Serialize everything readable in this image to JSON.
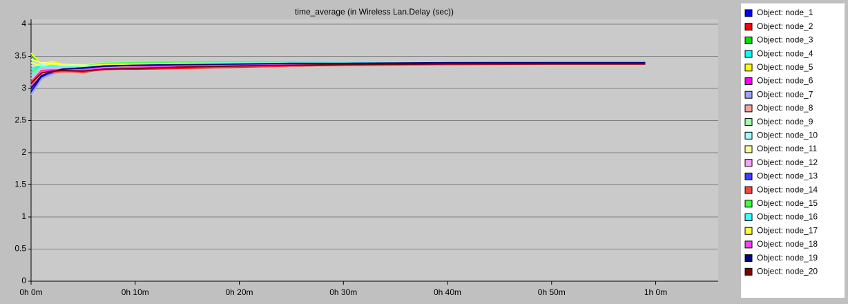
{
  "chart_data": {
    "type": "line",
    "title": "time_average (in Wireless Lan.Delay (sec))",
    "x": [
      0,
      1,
      2,
      3,
      5,
      7,
      10,
      14,
      20,
      25,
      30,
      40,
      50,
      59
    ],
    "xlim": [
      0,
      66
    ],
    "xticks": [
      {
        "value": 0,
        "label": "0h 0m"
      },
      {
        "value": 10,
        "label": "0h 10m"
      },
      {
        "value": 20,
        "label": "0h 20m"
      },
      {
        "value": 30,
        "label": "0h 30m"
      },
      {
        "value": 40,
        "label": "0h 40m"
      },
      {
        "value": 50,
        "label": "0h 50m"
      },
      {
        "value": 60,
        "label": "1h 0m"
      }
    ],
    "ylim": [
      0,
      4
    ],
    "yticks": [
      0,
      0.5,
      1,
      1.5,
      2,
      2.5,
      3,
      3.5,
      4
    ],
    "grid": true,
    "legend": "right",
    "series": [
      {
        "name": "Object: node_1",
        "color": "#0000ff",
        "values": [
          2.95,
          3.18,
          3.25,
          3.3,
          3.32,
          3.35,
          3.36,
          3.37,
          3.38,
          3.39,
          3.39,
          3.4,
          3.4,
          3.4
        ]
      },
      {
        "name": "Object: node_2",
        "color": "#ff0000",
        "values": [
          3.0,
          3.25,
          3.28,
          3.27,
          3.25,
          3.3,
          3.3,
          3.31,
          3.33,
          3.35,
          3.36,
          3.38,
          3.38,
          3.38
        ]
      },
      {
        "name": "Object: node_3",
        "color": "#00e000",
        "values": [
          3.5,
          3.4,
          3.38,
          3.37,
          3.36,
          3.4,
          3.4,
          3.4,
          3.41,
          3.4,
          3.4,
          3.4,
          3.39,
          3.39
        ]
      },
      {
        "name": "Object: node_4",
        "color": "#00ffff",
        "values": [
          3.3,
          3.36,
          3.35,
          3.36,
          3.35,
          3.37,
          3.38,
          3.39,
          3.4,
          3.4,
          3.4,
          3.4,
          3.4,
          3.4
        ]
      },
      {
        "name": "Object: node_5",
        "color": "#ffff00",
        "values": [
          3.55,
          3.38,
          3.42,
          3.38,
          3.36,
          3.38,
          3.38,
          3.39,
          3.4,
          3.39,
          3.39,
          3.4,
          3.4,
          3.39
        ]
      },
      {
        "name": "Object: node_6",
        "color": "#ff00ff",
        "values": [
          3.1,
          3.28,
          3.3,
          3.3,
          3.3,
          3.32,
          3.34,
          3.35,
          3.36,
          3.37,
          3.37,
          3.38,
          3.39,
          3.39
        ]
      },
      {
        "name": "Object: node_7",
        "color": "#a0a0ff",
        "values": [
          2.9,
          3.15,
          3.22,
          3.28,
          3.3,
          3.33,
          3.35,
          3.37,
          3.38,
          3.38,
          3.39,
          3.39,
          3.4,
          3.4
        ]
      },
      {
        "name": "Object: node_8",
        "color": "#ffa0a0",
        "values": [
          3.05,
          3.22,
          3.26,
          3.28,
          3.27,
          3.31,
          3.32,
          3.33,
          3.35,
          3.36,
          3.37,
          3.38,
          3.38,
          3.38
        ]
      },
      {
        "name": "Object: node_9",
        "color": "#a0ffa0",
        "values": [
          3.4,
          3.38,
          3.36,
          3.38,
          3.37,
          3.4,
          3.41,
          3.41,
          3.41,
          3.4,
          3.4,
          3.4,
          3.4,
          3.39
        ]
      },
      {
        "name": "Object: node_10",
        "color": "#a0ffff",
        "values": [
          3.35,
          3.37,
          3.36,
          3.35,
          3.36,
          3.38,
          3.39,
          3.4,
          3.4,
          3.4,
          3.4,
          3.41,
          3.4,
          3.4
        ]
      },
      {
        "name": "Object: node_11",
        "color": "#ffffa0",
        "values": [
          3.45,
          3.4,
          3.39,
          3.37,
          3.36,
          3.38,
          3.39,
          3.39,
          3.4,
          3.39,
          3.39,
          3.4,
          3.39,
          3.39
        ]
      },
      {
        "name": "Object: node_12",
        "color": "#ffa0ff",
        "values": [
          3.15,
          3.3,
          3.31,
          3.31,
          3.3,
          3.33,
          3.34,
          3.35,
          3.36,
          3.37,
          3.38,
          3.38,
          3.39,
          3.39
        ]
      },
      {
        "name": "Object: node_13",
        "color": "#4040ff",
        "values": [
          3.0,
          3.2,
          3.24,
          3.29,
          3.31,
          3.34,
          3.36,
          3.37,
          3.38,
          3.38,
          3.39,
          3.39,
          3.4,
          3.4
        ]
      },
      {
        "name": "Object: node_14",
        "color": "#ff4040",
        "values": [
          3.1,
          3.28,
          3.25,
          3.26,
          3.26,
          3.29,
          3.31,
          3.32,
          3.34,
          3.35,
          3.36,
          3.37,
          3.38,
          3.38
        ]
      },
      {
        "name": "Object: node_15",
        "color": "#40ff40",
        "values": [
          3.25,
          3.35,
          3.37,
          3.36,
          3.35,
          3.39,
          3.4,
          3.41,
          3.41,
          3.41,
          3.4,
          3.4,
          3.4,
          3.39
        ]
      },
      {
        "name": "Object: node_16",
        "color": "#40ffff",
        "values": [
          3.2,
          3.34,
          3.34,
          3.35,
          3.34,
          3.36,
          3.38,
          3.39,
          3.4,
          3.4,
          3.4,
          3.4,
          3.4,
          3.4
        ]
      },
      {
        "name": "Object: node_17",
        "color": "#ffff40",
        "values": [
          3.4,
          3.35,
          3.38,
          3.36,
          3.35,
          3.37,
          3.38,
          3.39,
          3.39,
          3.39,
          3.39,
          3.4,
          3.39,
          3.39
        ]
      },
      {
        "name": "Object: node_18",
        "color": "#ff40ff",
        "values": [
          3.05,
          3.26,
          3.29,
          3.29,
          3.29,
          3.31,
          3.33,
          3.35,
          3.36,
          3.37,
          3.37,
          3.38,
          3.39,
          3.39
        ]
      },
      {
        "name": "Object: node_19",
        "color": "#000080",
        "values": [
          3.0,
          3.2,
          3.26,
          3.3,
          3.32,
          3.35,
          3.36,
          3.37,
          3.38,
          3.39,
          3.39,
          3.4,
          3.4,
          3.4
        ]
      },
      {
        "name": "Object: node_20",
        "color": "#800000",
        "values": [
          3.08,
          3.24,
          3.27,
          3.28,
          3.27,
          3.3,
          3.31,
          3.33,
          3.35,
          3.36,
          3.37,
          3.38,
          3.38,
          3.38
        ]
      }
    ]
  }
}
